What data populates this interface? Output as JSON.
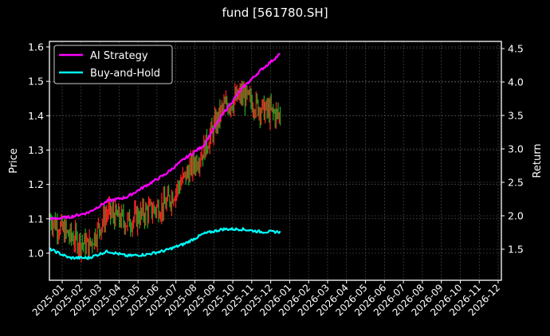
{
  "title": "fund [561780.SH]",
  "chart_data": {
    "type": "line",
    "title": "fund [561780.SH]",
    "xlabel": "",
    "ylabel": "Price",
    "y2label": "Return",
    "ylim": [
      0.925,
      1.615
    ],
    "y2lim": [
      1.06,
      4.6
    ],
    "grid": true,
    "legend_position": "upper left",
    "x_ticks": [
      "2025-01",
      "2025-02",
      "2025-03",
      "2025-04",
      "2025-05",
      "2025-06",
      "2025-07",
      "2025-08",
      "2025-09",
      "2025-10",
      "2025-11",
      "2025-12",
      "2026-01",
      "2026-02",
      "2026-03",
      "2026-04",
      "2026-05",
      "2026-06",
      "2026-07",
      "2026-08",
      "2026-09",
      "2026-10",
      "2026-11",
      "2026-12"
    ],
    "y_ticks": [
      1.0,
      1.1,
      1.2,
      1.3,
      1.4,
      1.5,
      1.6
    ],
    "y2_ticks": [
      1.5,
      2.0,
      2.5,
      3.0,
      3.5,
      4.0,
      4.5
    ],
    "x": [
      "2025-01",
      "2025-02",
      "2025-03",
      "2025-04",
      "2025-05",
      "2025-06",
      "2025-07",
      "2025-08",
      "2025-09",
      "2025-10",
      "2025-11",
      "2025-12",
      "2025-12-15"
    ],
    "series": [
      {
        "name": "AI Strategy",
        "axis": "right",
        "color": "#ff00ff",
        "values": [
          1.95,
          1.98,
          2.05,
          2.22,
          2.28,
          2.45,
          2.62,
          2.85,
          3.05,
          3.52,
          3.9,
          4.18,
          4.42
        ]
      },
      {
        "name": "Buy-and-Hold",
        "axis": "right",
        "color": "#00ffff",
        "values": [
          1.5,
          1.37,
          1.37,
          1.47,
          1.4,
          1.42,
          1.48,
          1.58,
          1.73,
          1.8,
          1.8,
          1.76,
          1.76
        ]
      },
      {
        "name": "Price (candles)",
        "axis": "left",
        "color_up": "#ff2222",
        "color_down": "#22aa22",
        "values": [
          1.1,
          1.05,
          1.02,
          1.12,
          1.09,
          1.12,
          1.14,
          1.22,
          1.3,
          1.42,
          1.46,
          1.42,
          1.4
        ]
      }
    ]
  },
  "legend": [
    {
      "label": "AI Strategy",
      "color": "#ff00ff"
    },
    {
      "label": "Buy-and-Hold",
      "color": "#00ffff"
    }
  ]
}
